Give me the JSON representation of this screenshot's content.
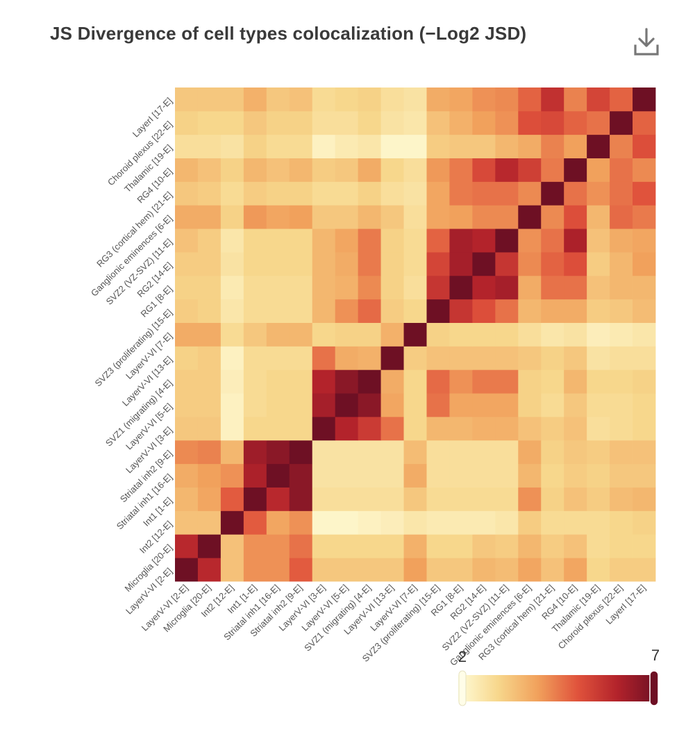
{
  "title": "JS Divergence of cell types colocalization (−Log2 JSD)",
  "toolbar": {
    "download_icon": "download-icon"
  },
  "chart_data": {
    "type": "heatmap",
    "title": "JS Divergence of cell types colocalization (−Log2 JSD)",
    "labels": [
      "LayerV-VI [2-E]",
      "Microglia [20-E]",
      "Int2 [12-E]",
      "Int1 [1-E]",
      "Striatal inh1 [16-E]",
      "Striatal inh2 [9-E]",
      "LayerV-VI [3-E]",
      "LayerV-VI [5-E]",
      "SVZ1 (migrating) [4-E]",
      "LayerV-VI [13-E]",
      "LayerV-VI [7-E]",
      "SVZ3 (proliferating) [15-E]",
      "RG1 [8-E]",
      "RG2 [14-E]",
      "SVZ2 (VZ-SVZ) [11-E]",
      "Ganglionic eminences [6-E]",
      "RG3 (cortical hem) [21-E]",
      "RG4 [10-E]",
      "Thalamic [19-E]",
      "Choroid plexus [22-E]",
      "LayerI [17-E]"
    ],
    "row_order": "bottom-to-top",
    "col_order": "left-to-right",
    "values": [
      [
        7.0,
        5.9,
        3.4,
        4.2,
        4.2,
        4.9,
        3.3,
        3.3,
        3.3,
        3.3,
        4.0,
        3.3,
        3.3,
        3.6,
        3.5,
        3.9,
        3.4,
        3.9,
        3.0,
        3.2,
        3.2
      ],
      [
        5.9,
        7.0,
        3.4,
        4.2,
        4.2,
        4.6,
        3.0,
        3.0,
        3.0,
        3.0,
        3.7,
        3.0,
        3.0,
        3.3,
        3.2,
        3.6,
        3.2,
        3.4,
        2.9,
        3.0,
        3.0
      ],
      [
        3.4,
        3.4,
        7.0,
        4.9,
        3.9,
        4.2,
        2.2,
        2.2,
        2.3,
        2.4,
        2.6,
        2.5,
        2.5,
        2.5,
        2.6,
        3.2,
        2.9,
        2.9,
        2.9,
        3.0,
        3.1
      ],
      [
        3.6,
        3.9,
        4.9,
        7.0,
        5.9,
        6.6,
        2.8,
        2.8,
        2.8,
        2.8,
        3.3,
        2.9,
        2.9,
        2.9,
        2.9,
        4.2,
        3.1,
        3.4,
        3.2,
        3.5,
        3.6
      ],
      [
        3.8,
        4.0,
        4.2,
        6.1,
        7.0,
        6.6,
        2.7,
        2.7,
        2.7,
        2.7,
        3.8,
        2.8,
        2.8,
        2.8,
        2.8,
        3.6,
        3.0,
        3.2,
        3.1,
        3.3,
        3.3
      ],
      [
        4.3,
        4.4,
        3.6,
        6.3,
        6.6,
        7.0,
        2.7,
        2.7,
        2.7,
        2.7,
        3.5,
        2.8,
        2.8,
        2.8,
        2.8,
        3.8,
        3.1,
        3.3,
        3.2,
        3.4,
        3.4
      ],
      [
        3.3,
        3.3,
        2.3,
        3.0,
        3.0,
        3.0,
        7.0,
        6.0,
        5.5,
        4.6,
        3.0,
        3.6,
        3.6,
        3.7,
        3.7,
        3.4,
        3.2,
        3.4,
        2.8,
        2.9,
        3.0
      ],
      [
        3.2,
        3.2,
        2.3,
        2.9,
        3.0,
        3.0,
        6.2,
        7.0,
        6.6,
        3.9,
        3.0,
        4.6,
        3.9,
        3.9,
        3.9,
        3.1,
        2.9,
        3.3,
        2.9,
        2.9,
        3.0
      ],
      [
        3.2,
        3.2,
        2.4,
        2.9,
        3.0,
        3.0,
        6.0,
        6.6,
        7.0,
        3.8,
        3.0,
        4.7,
        4.2,
        4.5,
        4.5,
        3.1,
        3.0,
        3.6,
        3.0,
        3.0,
        3.1
      ],
      [
        3.1,
        3.2,
        2.3,
        2.9,
        2.9,
        2.9,
        4.6,
        3.8,
        3.7,
        7.0,
        3.2,
        3.4,
        3.4,
        3.4,
        3.4,
        3.3,
        3.1,
        3.3,
        2.7,
        2.8,
        2.8
      ],
      [
        3.8,
        3.8,
        2.9,
        3.3,
        3.6,
        3.6,
        3.0,
        3.1,
        3.1,
        3.7,
        7.0,
        3.1,
        3.0,
        3.0,
        3.0,
        2.8,
        2.6,
        2.7,
        2.4,
        2.5,
        2.6
      ],
      [
        3.2,
        3.1,
        2.6,
        2.9,
        2.9,
        2.9,
        3.6,
        4.2,
        4.7,
        3.2,
        3.0,
        7.0,
        5.6,
        5.1,
        4.6,
        3.6,
        3.8,
        3.8,
        3.2,
        3.3,
        3.5
      ],
      [
        3.1,
        3.1,
        2.5,
        2.9,
        2.9,
        2.9,
        3.6,
        3.7,
        4.3,
        3.1,
        2.8,
        5.6,
        7.0,
        6.0,
        6.2,
        3.8,
        4.6,
        4.6,
        3.4,
        3.6,
        3.6
      ],
      [
        3.2,
        3.2,
        2.7,
        3.0,
        3.0,
        3.0,
        3.6,
        3.8,
        4.5,
        3.1,
        2.9,
        5.3,
        6.2,
        7.0,
        5.6,
        4.3,
        4.8,
        5.1,
        3.2,
        3.6,
        4.0
      ],
      [
        3.4,
        3.2,
        2.6,
        3.0,
        3.0,
        3.0,
        3.6,
        3.9,
        4.5,
        3.1,
        2.9,
        4.8,
        6.2,
        6.0,
        7.0,
        4.2,
        4.6,
        6.1,
        3.4,
        3.8,
        3.9
      ],
      [
        3.8,
        3.8,
        3.1,
        4.1,
        3.9,
        4.0,
        3.3,
        3.3,
        3.6,
        3.3,
        2.8,
        3.9,
        4.0,
        4.3,
        4.3,
        7.0,
        4.3,
        5.1,
        3.6,
        4.7,
        4.5
      ],
      [
        3.3,
        3.2,
        2.9,
        3.2,
        3.1,
        3.1,
        2.9,
        2.9,
        3.1,
        2.8,
        2.7,
        3.9,
        4.5,
        4.6,
        4.6,
        4.3,
        7.0,
        4.6,
        4.2,
        4.6,
        5.0
      ],
      [
        3.6,
        3.4,
        3.1,
        3.6,
        3.4,
        3.6,
        3.2,
        3.3,
        3.8,
        3.0,
        2.8,
        4.1,
        4.5,
        5.2,
        5.9,
        5.4,
        4.5,
        7.0,
        4.0,
        4.6,
        4.3
      ],
      [
        2.8,
        2.8,
        2.7,
        3.1,
        2.9,
        2.9,
        2.3,
        2.5,
        2.6,
        2.2,
        2.2,
        3.2,
        3.3,
        3.3,
        3.6,
        3.8,
        4.4,
        4.0,
        7.0,
        4.4,
        5.1
      ],
      [
        3.1,
        3.0,
        3.0,
        3.3,
        3.1,
        3.1,
        2.8,
        2.8,
        3.0,
        2.7,
        2.6,
        3.4,
        3.7,
        4.0,
        4.2,
        5.1,
        5.2,
        4.8,
        4.6,
        7.0,
        4.8
      ],
      [
        3.3,
        3.3,
        3.3,
        3.7,
        3.3,
        3.4,
        2.9,
        3.0,
        3.1,
        2.8,
        2.7,
        3.8,
        3.9,
        4.2,
        4.3,
        4.8,
        5.7,
        4.4,
        5.3,
        4.8,
        7.0
      ]
    ],
    "colorscale": [
      "#fffcd8",
      "#f7d78c",
      "#f1a15c",
      "#e0533c",
      "#b3232b",
      "#6e1024"
    ],
    "scale_min": 2,
    "scale_max": 7,
    "range_labels": [
      "2",
      "7"
    ]
  }
}
